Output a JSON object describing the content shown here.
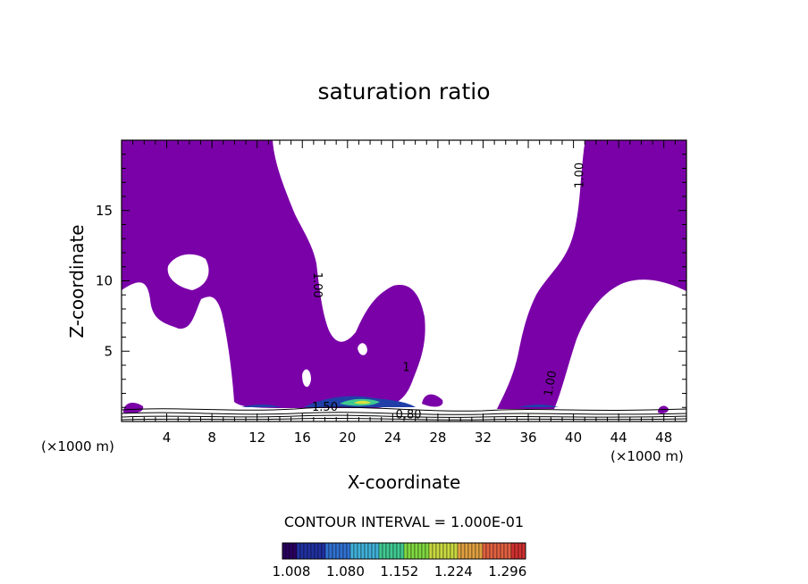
{
  "chart_data": {
    "type": "contour",
    "title": "saturation ratio",
    "xlabel": "X-coordinate",
    "ylabel": "Z-coordinate",
    "x_unit": "(×1000 m)",
    "x_unit_secondary": "(×1000 m)",
    "xlim": [
      0,
      50
    ],
    "ylim": [
      0,
      20
    ],
    "x_ticks": [
      4,
      8,
      12,
      16,
      20,
      24,
      28,
      32,
      36,
      40,
      44,
      48
    ],
    "y_ticks": [
      5,
      10,
      15
    ],
    "fill_color": "#7a00a8",
    "contour_interval_text": "CONTOUR INTERVAL = 1.000E-01",
    "contour_labels": [
      {
        "text": "1.00",
        "x": 17.3,
        "y": 9.7,
        "angle": 90
      },
      {
        "text": "1.00",
        "x": 40.6,
        "y": 17.5,
        "angle": -90
      },
      {
        "text": "1.00",
        "x": 38.0,
        "y": 2.7,
        "angle": -80
      },
      {
        "text": "1",
        "x": 25.2,
        "y": 3.8,
        "angle": 0
      },
      {
        "text": "0.80",
        "x": 25.4,
        "y": 0.45,
        "angle": 0
      },
      {
        "text": "1.50",
        "x": 18.0,
        "y": 1.0,
        "angle": 0
      }
    ],
    "colorbar": {
      "ticks": [
        "1.008",
        "1.080",
        "1.152",
        "1.224",
        "1.296"
      ],
      "min": 1.008,
      "max": 1.332,
      "colors": [
        "#2a0060",
        "#2030a0",
        "#3070d0",
        "#40b0d8",
        "#40c890",
        "#80d840",
        "#c8d840",
        "#e0a040",
        "#e06040",
        "#d03030"
      ]
    }
  }
}
